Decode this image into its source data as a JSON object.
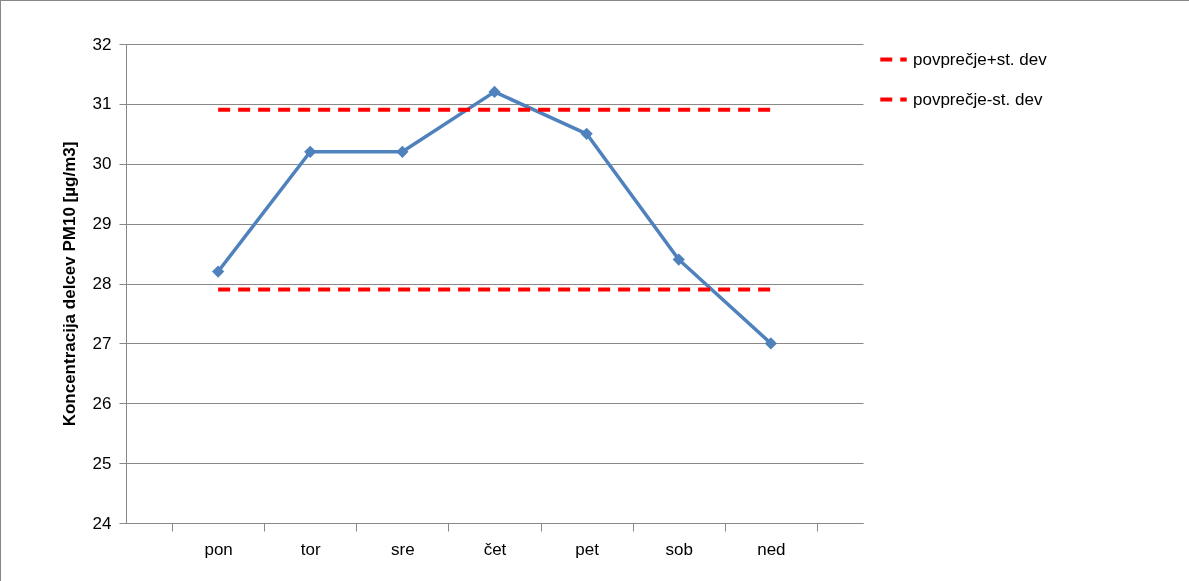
{
  "chart_data": {
    "type": "line",
    "ylabel": "Koncentracija delcev PM10 [µg/m3]",
    "categories": [
      "pon",
      "tor",
      "sre",
      "čet",
      "pet",
      "sob",
      "ned"
    ],
    "series": [
      {
        "color": "#4f81bd",
        "marker": "diamond",
        "line_style": "solid",
        "values": [
          28.2,
          30.2,
          30.2,
          31.2,
          30.5,
          28.4,
          27.0
        ]
      },
      {
        "name": "povprečje+st. dev",
        "color": "#ff0000",
        "marker": "none",
        "line_style": "dashed",
        "values": [
          30.9,
          30.9,
          30.9,
          30.9,
          30.9,
          30.9,
          30.9
        ]
      },
      {
        "name": "povprečje-st. dev",
        "color": "#ff0000",
        "marker": "none",
        "line_style": "dashed",
        "values": [
          27.9,
          27.9,
          27.9,
          27.9,
          27.9,
          27.9,
          27.9
        ]
      }
    ],
    "ylim": [
      24,
      32
    ],
    "yticks": [
      24,
      25,
      26,
      27,
      28,
      29,
      30,
      31,
      32
    ],
    "grid": "y",
    "legend": "right"
  }
}
